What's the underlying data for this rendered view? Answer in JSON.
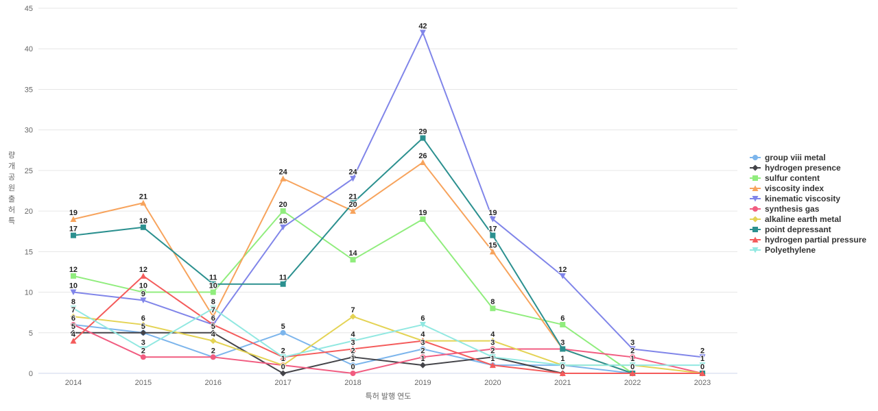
{
  "chart_data": {
    "type": "line",
    "title": "",
    "xlabel": "특허 발행 연도",
    "ylabel": "특허 출원 공개량",
    "categories": [
      "2014",
      "2015",
      "2016",
      "2017",
      "2018",
      "2019",
      "2020",
      "2021",
      "2022",
      "2023"
    ],
    "ylim": [
      0,
      45
    ],
    "yticks": [
      0,
      5,
      10,
      15,
      20,
      25,
      30,
      35,
      40,
      45
    ],
    "grid": "horizontal",
    "legend_position": "right",
    "data_labels": true,
    "series": [
      {
        "name": "group viii metal",
        "color": "#7cb5ec",
        "marker": "circle",
        "values": [
          6,
          5,
          2,
          5,
          1,
          3,
          1,
          1,
          0,
          0
        ]
      },
      {
        "name": "hydrogen presence",
        "color": "#434348",
        "marker": "diamond",
        "values": [
          5,
          5,
          5,
          0,
          2,
          1,
          2,
          0,
          0,
          0
        ]
      },
      {
        "name": "sulfur content",
        "color": "#90ed7d",
        "marker": "square",
        "values": [
          12,
          10,
          10,
          20,
          14,
          19,
          8,
          6,
          0,
          0
        ]
      },
      {
        "name": "viscosity index",
        "color": "#f7a35c",
        "marker": "triangle",
        "values": [
          19,
          21,
          7,
          24,
          20,
          26,
          15,
          3,
          0,
          0
        ]
      },
      {
        "name": "kinematic viscosity",
        "color": "#8085e9",
        "marker": "triangle-down",
        "values": [
          10,
          9,
          6,
          18,
          24,
          42,
          19,
          12,
          3,
          2
        ]
      },
      {
        "name": "synthesis gas",
        "color": "#f15c80",
        "marker": "circle",
        "values": [
          6,
          2,
          2,
          1,
          0,
          2,
          3,
          3,
          2,
          0
        ]
      },
      {
        "name": "alkaline earth metal",
        "color": "#e4d354",
        "marker": "diamond",
        "values": [
          7,
          6,
          4,
          1,
          7,
          4,
          4,
          1,
          1,
          0
        ]
      },
      {
        "name": "point depressant",
        "color": "#2b908f",
        "marker": "square",
        "values": [
          17,
          18,
          11,
          11,
          21,
          29,
          17,
          3,
          0,
          0
        ]
      },
      {
        "name": "hydrogen partial pressure",
        "color": "#f45b5b",
        "marker": "triangle",
        "values": [
          4,
          12,
          6,
          2,
          3,
          4,
          1,
          0,
          0,
          0
        ]
      },
      {
        "name": "Polyethylene",
        "color": "#91e8e1",
        "marker": "triangle-down",
        "values": [
          8,
          3,
          8,
          2,
          4,
          6,
          2,
          1,
          1,
          1
        ]
      }
    ]
  },
  "style": {
    "grid_color": "#e6e6e6",
    "xaxis_line_color": "#ccd6eb",
    "tick_label_color": "#666666",
    "legend_text_color": "#333333",
    "data_label_color": "#222222",
    "background": "#ffffff"
  }
}
